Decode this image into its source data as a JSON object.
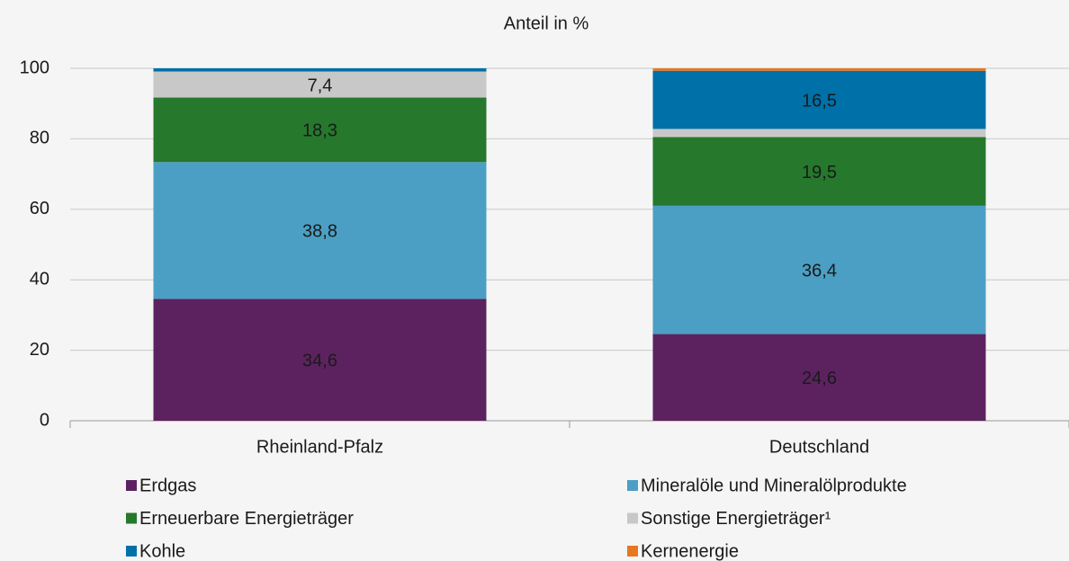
{
  "chart_data": {
    "type": "stacked_bar",
    "title": "Anteil in %",
    "categories": [
      "Rheinland-Pfalz",
      "Deutschland"
    ],
    "series": [
      {
        "name": "Erdgas",
        "color": "#5c2260",
        "values": [
          34.6,
          24.6
        ],
        "value_labels": [
          "34,6",
          "24,6"
        ]
      },
      {
        "name": "Mineralöle und Mineralölprodukte",
        "color": "#4b9fc4",
        "values": [
          38.8,
          36.4
        ],
        "value_labels": [
          "38,8",
          "36,4"
        ]
      },
      {
        "name": "Erneuerbare Energieträger",
        "color": "#25782c",
        "values": [
          18.3,
          19.5
        ],
        "value_labels": [
          "18,3",
          "19,5"
        ]
      },
      {
        "name": "Sonstige Energieträger¹",
        "color": "#c8c8c8",
        "values": [
          7.4,
          2.3
        ],
        "value_labels": [
          "7,4",
          null
        ]
      },
      {
        "name": "Kohle",
        "color": "#0070a8",
        "values": [
          0.9,
          16.5
        ],
        "value_labels": [
          null,
          "16,5"
        ]
      },
      {
        "name": "Kernenergie",
        "color": "#e87722",
        "values": [
          0,
          0.7
        ],
        "value_labels": [
          null,
          null
        ]
      }
    ],
    "ylim": [
      0,
      100
    ],
    "yticks": [
      0,
      20,
      40,
      60,
      80,
      100
    ],
    "grid": true,
    "legend": "bottom"
  }
}
